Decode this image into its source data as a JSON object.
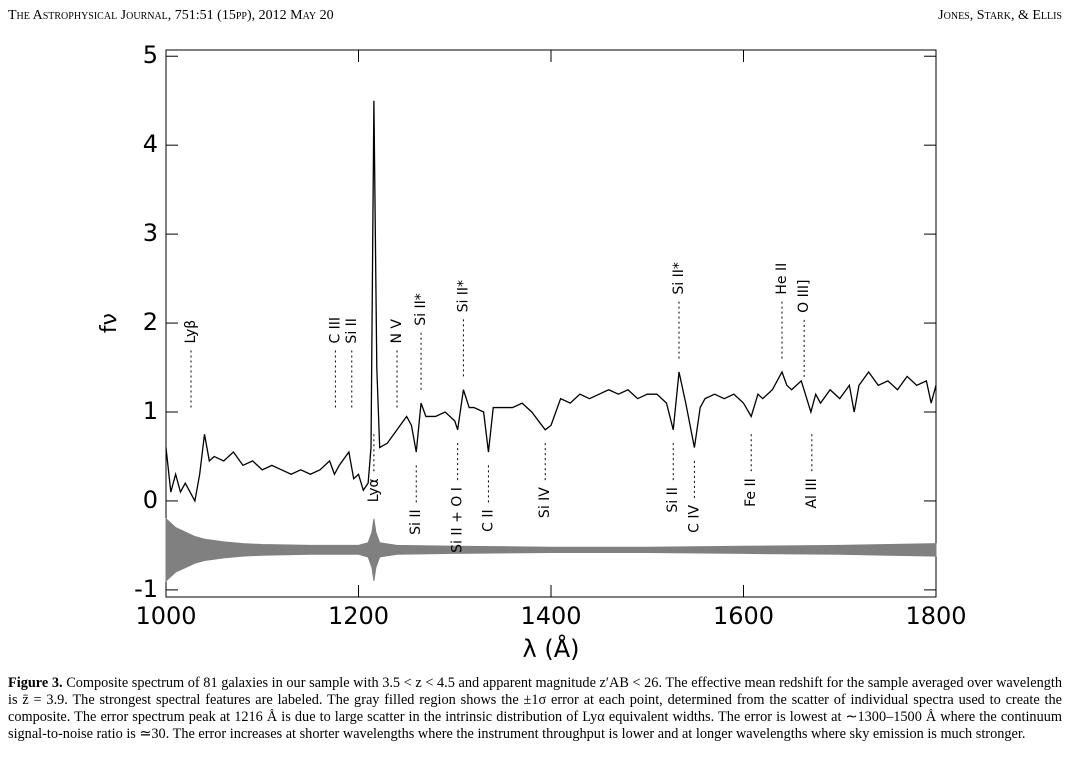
{
  "header": {
    "journal": "The Astrophysical Journal, 751:51 (15pp), 2012 May 20",
    "authors": "Jones, Stark, & Ellis"
  },
  "chart_data": {
    "type": "line",
    "xlabel": "λ (Å)",
    "ylabel": "fν",
    "xlim": [
      1000,
      1800
    ],
    "xticks": [
      1000,
      1200,
      1400,
      1600,
      1800
    ],
    "ylim": [
      -1.08,
      5.07
    ],
    "yticks": [
      -1,
      0,
      1,
      2,
      3,
      4,
      5
    ],
    "series": [
      {
        "color": "#000000",
        "x": [
          1000,
          1005,
          1010,
          1015,
          1020,
          1030,
          1035,
          1040,
          1045,
          1050,
          1060,
          1070,
          1080,
          1090,
          1100,
          1110,
          1120,
          1130,
          1140,
          1150,
          1160,
          1170,
          1175,
          1180,
          1190,
          1195,
          1200,
          1205,
          1210,
          1213,
          1216,
          1219,
          1222,
          1230,
          1240,
          1250,
          1255,
          1260,
          1265,
          1270,
          1280,
          1290,
          1300,
          1303,
          1309,
          1315,
          1320,
          1330,
          1335,
          1340,
          1350,
          1360,
          1370,
          1380,
          1394,
          1400,
          1410,
          1420,
          1430,
          1440,
          1450,
          1460,
          1470,
          1480,
          1490,
          1500,
          1510,
          1520,
          1527,
          1533,
          1540,
          1549,
          1555,
          1560,
          1570,
          1580,
          1590,
          1600,
          1608,
          1615,
          1620,
          1630,
          1640,
          1645,
          1650,
          1660,
          1670,
          1675,
          1680,
          1690,
          1700,
          1710,
          1715,
          1720,
          1730,
          1740,
          1750,
          1760,
          1770,
          1780,
          1790,
          1795,
          1800
        ],
        "values": [
          0.6,
          0.1,
          0.3,
          0.1,
          0.2,
          0.0,
          0.3,
          0.75,
          0.45,
          0.5,
          0.45,
          0.55,
          0.4,
          0.45,
          0.35,
          0.4,
          0.35,
          0.3,
          0.35,
          0.3,
          0.35,
          0.45,
          0.3,
          0.4,
          0.55,
          0.25,
          0.3,
          0.12,
          0.2,
          0.6,
          4.5,
          1.5,
          0.6,
          0.65,
          0.8,
          0.95,
          0.85,
          0.55,
          1.1,
          0.95,
          0.95,
          1.0,
          0.9,
          0.8,
          1.25,
          1.05,
          1.05,
          1.0,
          0.55,
          1.05,
          1.05,
          1.05,
          1.1,
          1.0,
          0.8,
          0.85,
          1.15,
          1.1,
          1.2,
          1.15,
          1.2,
          1.25,
          1.2,
          1.25,
          1.15,
          1.2,
          1.2,
          1.1,
          0.8,
          1.45,
          1.1,
          0.6,
          1.05,
          1.15,
          1.2,
          1.15,
          1.2,
          1.1,
          0.95,
          1.2,
          1.15,
          1.25,
          1.45,
          1.3,
          1.25,
          1.35,
          1.0,
          1.2,
          1.1,
          1.25,
          1.15,
          1.3,
          1.0,
          1.3,
          1.45,
          1.3,
          1.35,
          1.25,
          1.4,
          1.3,
          1.35,
          1.1,
          1.3
        ]
      }
    ],
    "error_band": {
      "color": "#808080",
      "offset": -0.55,
      "x": [
        1000,
        1005,
        1010,
        1020,
        1030,
        1040,
        1060,
        1080,
        1100,
        1150,
        1200,
        1210,
        1214,
        1216,
        1218,
        1222,
        1240,
        1300,
        1400,
        1500,
        1600,
        1700,
        1750,
        1800
      ],
      "values": [
        0.35,
        0.3,
        0.25,
        0.2,
        0.15,
        0.12,
        0.09,
        0.07,
        0.06,
        0.05,
        0.05,
        0.08,
        0.2,
        0.35,
        0.2,
        0.08,
        0.05,
        0.04,
        0.03,
        0.03,
        0.04,
        0.05,
        0.06,
        0.07
      ]
    },
    "annotations": [
      {
        "text": "Lyβ",
        "x": 1026,
        "side": "above"
      },
      {
        "text": "C III",
        "x": 1176,
        "side": "above"
      },
      {
        "text": "Si II",
        "x": 1193,
        "side": "above"
      },
      {
        "text": "Lyα",
        "x": 1216,
        "side": "below"
      },
      {
        "text": "N V",
        "x": 1240,
        "side": "above"
      },
      {
        "text": "Si II",
        "x": 1260,
        "side": "below"
      },
      {
        "text": "Si II*",
        "x": 1265,
        "side": "above"
      },
      {
        "text": "Si II + O I",
        "x": 1303,
        "side": "below"
      },
      {
        "text": "Si II*",
        "x": 1309,
        "side": "above"
      },
      {
        "text": "C II",
        "x": 1335,
        "side": "below"
      },
      {
        "text": "Si IV",
        "x": 1394,
        "side": "below"
      },
      {
        "text": "Si II",
        "x": 1527,
        "side": "below"
      },
      {
        "text": "Si II*",
        "x": 1533,
        "side": "above"
      },
      {
        "text": "C IV",
        "x": 1549,
        "side": "below"
      },
      {
        "text": "Fe II",
        "x": 1608,
        "side": "below"
      },
      {
        "text": "He II",
        "x": 1640,
        "side": "above"
      },
      {
        "text": "O III]",
        "x": 1663,
        "side": "above"
      },
      {
        "text": "Al III",
        "x": 1671,
        "side": "below"
      }
    ]
  },
  "caption": {
    "label": "Figure 3.",
    "text": "Composite spectrum of 81 galaxies in our sample with 3.5 < z < 4.5 and apparent magnitude z′AB < 26. The effective mean redshift for the sample averaged over wavelength is z̄ = 3.9. The strongest spectral features are labeled. The gray filled region shows the ±1σ error at each point, determined from the scatter of individual spectra used to create the composite. The error spectrum peak at 1216 Å is due to large scatter in the intrinsic distribution of Lyα equivalent widths. The error is lowest at ∼1300–1500 Å where the continuum signal-to-noise ratio is ≃30. The error increases at shorter wavelengths where the instrument throughput is lower and at longer wavelengths where sky emission is much stronger."
  }
}
